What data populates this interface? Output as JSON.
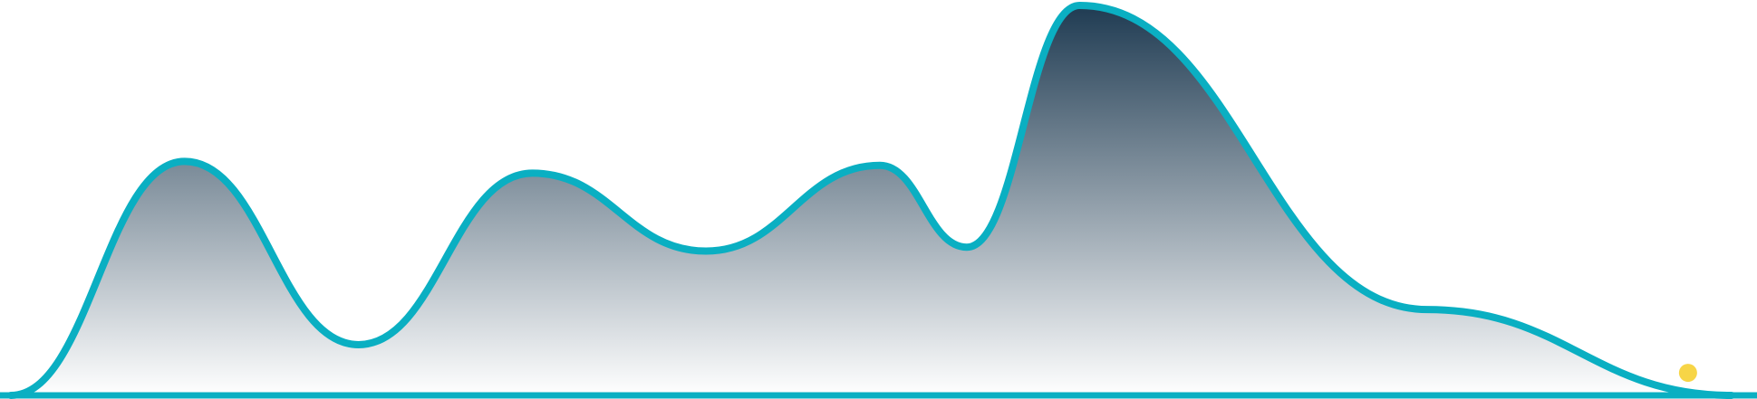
{
  "chart_data": {
    "type": "area",
    "title": "",
    "xlabel": "",
    "ylabel": "",
    "grid": false,
    "legend": "none",
    "xlim": [
      0,
      20
    ],
    "ylim": [
      0,
      100
    ],
    "series": [
      {
        "x": [
          0,
          2,
          4,
          6,
          8,
          10,
          11,
          12.3,
          16.3,
          19.8
        ],
        "values": [
          0,
          60,
          13,
          57,
          37,
          59,
          38,
          100,
          22,
          0
        ],
        "peak_type": [
          "start",
          "max",
          "min",
          "max",
          "min",
          "max",
          "min",
          "max",
          "shoulder",
          "end"
        ]
      }
    ],
    "marker": {
      "x": 19.3,
      "value": 3
    },
    "colors": {
      "line": "#0aafc2",
      "area_top": "#1f3b52",
      "area_bottom": "#ffffff",
      "marker": "#f7d547",
      "background": "#ffffff"
    }
  }
}
